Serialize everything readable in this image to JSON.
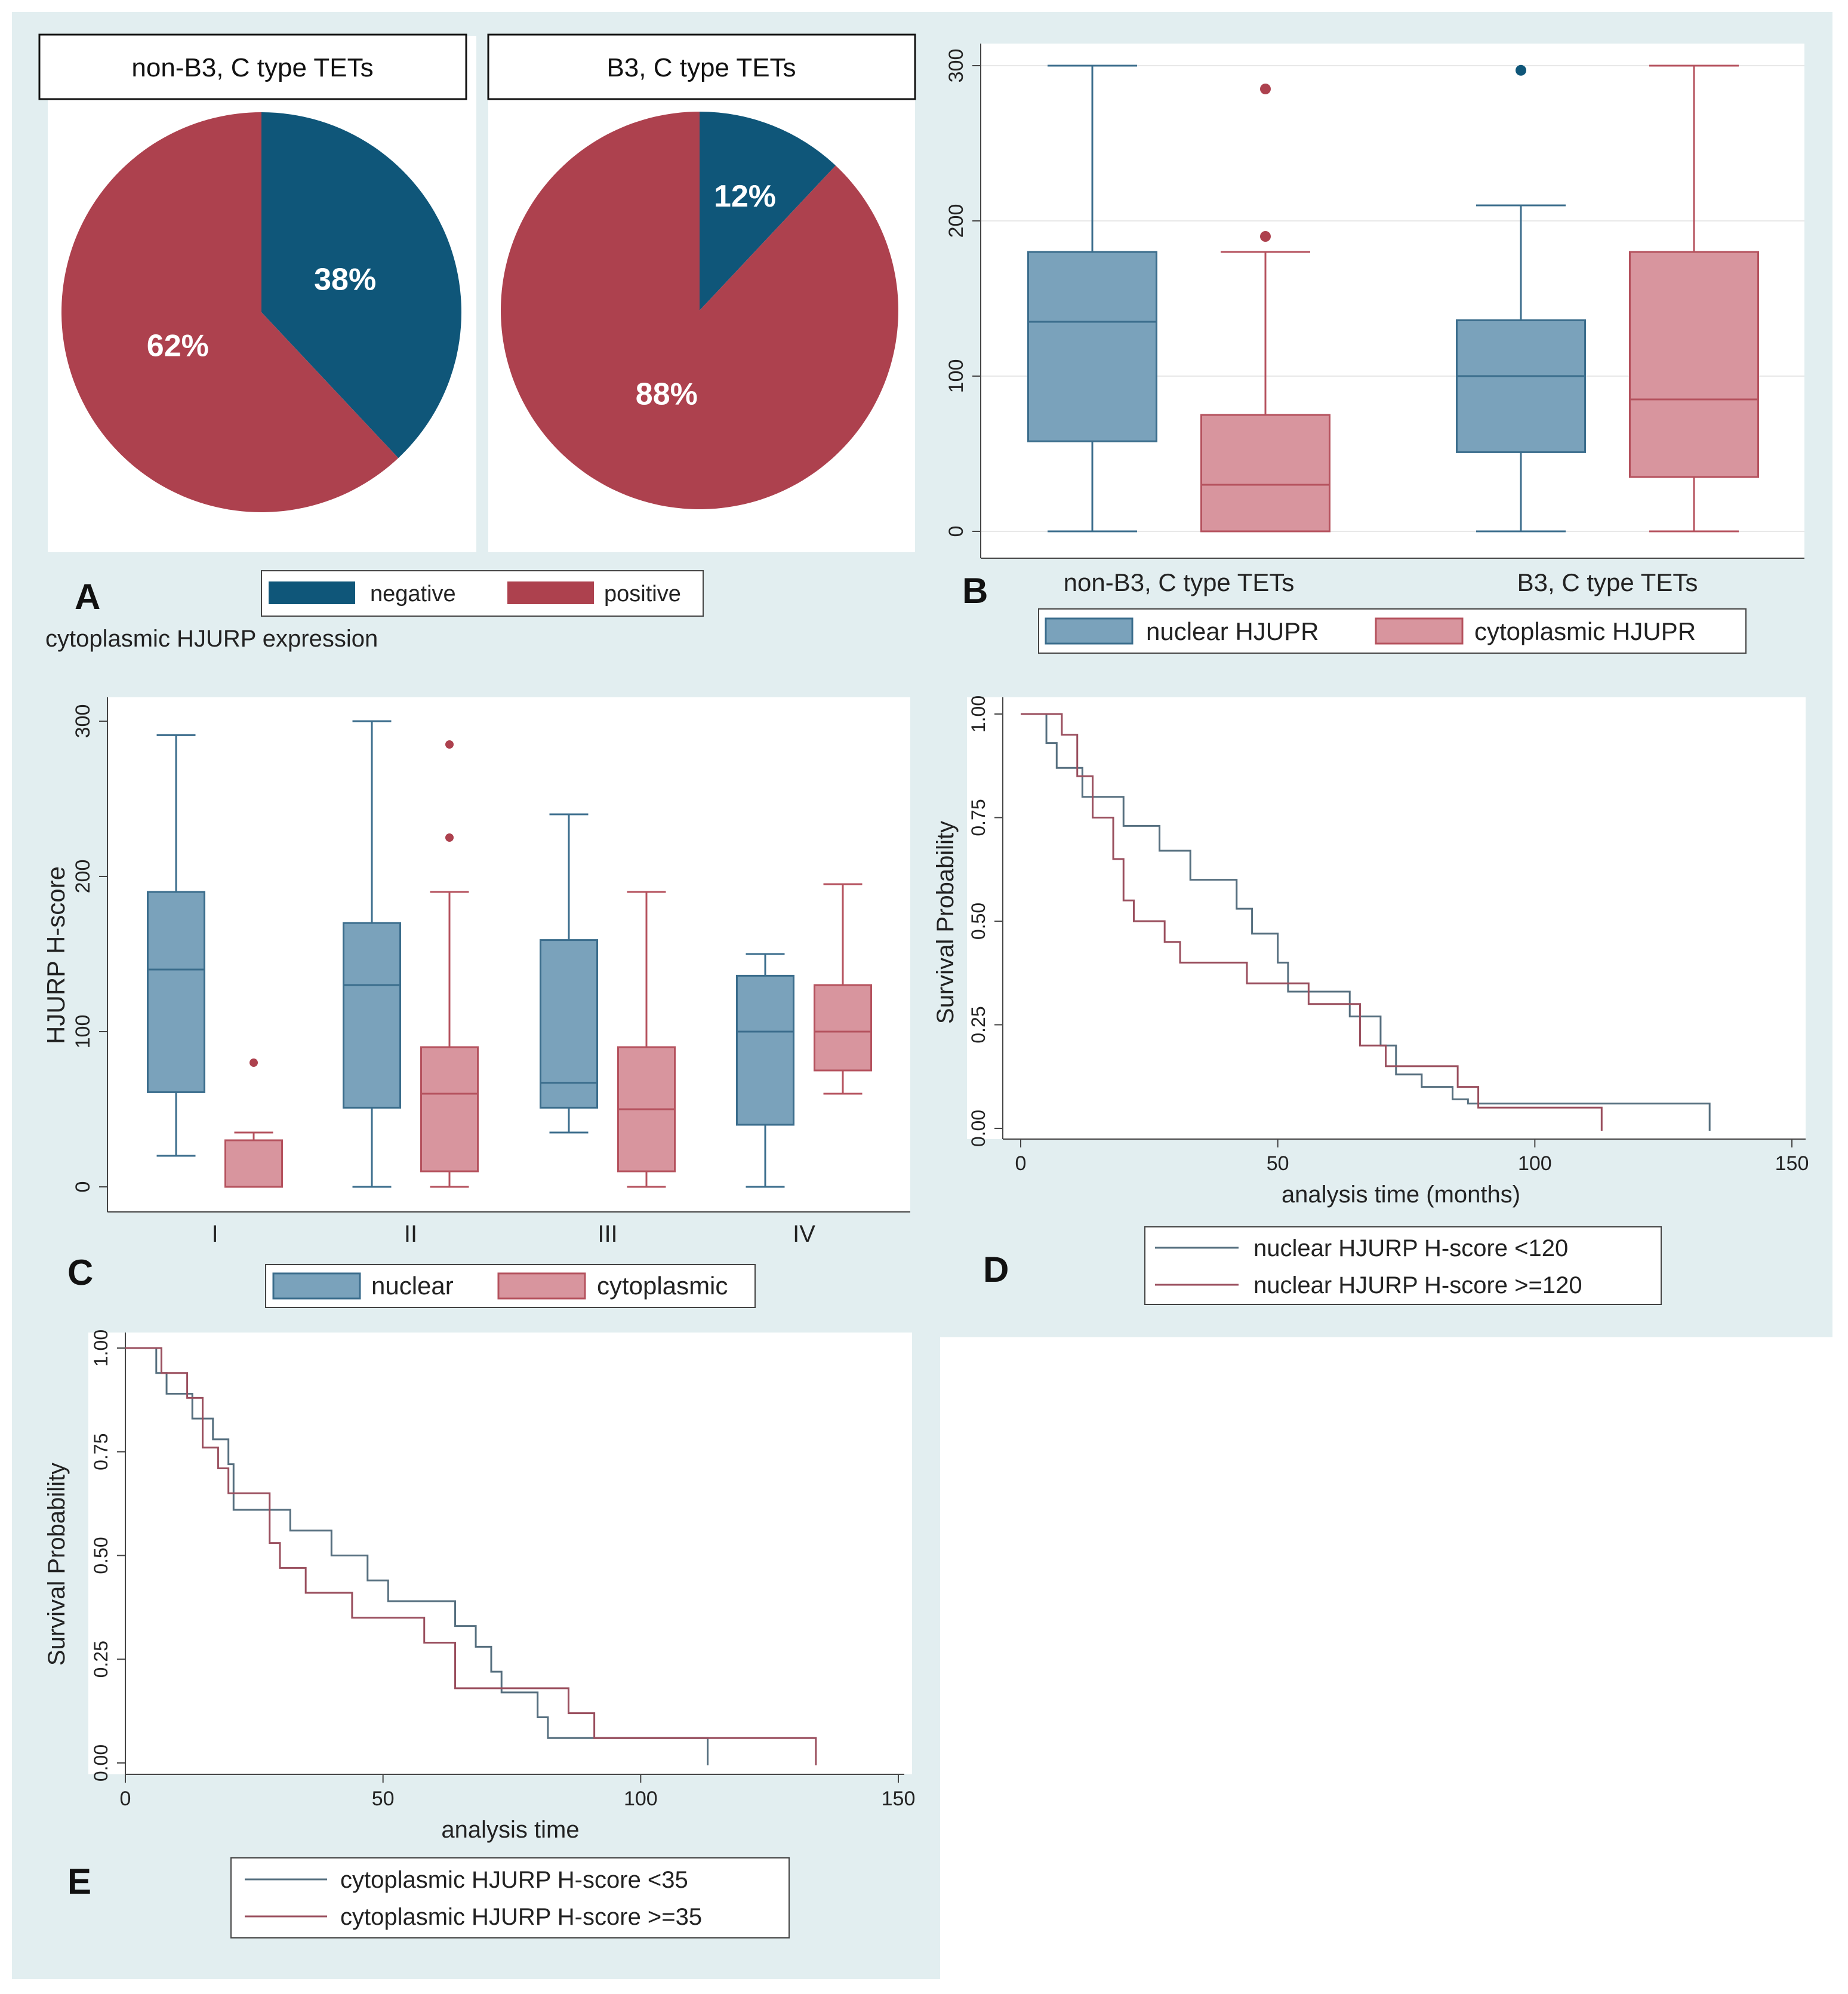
{
  "colors": {
    "panel_bg": "#e2eef0",
    "plot_bg": "#ffffff",
    "blue_dark": "#0f5679",
    "red_dark": "#ad414e",
    "blue_box": "#7aa2bb",
    "blue_line": "#3b6d8c",
    "red_box": "#d8959e",
    "red_line": "#b5525e",
    "km_blue": "#566f7f",
    "km_red": "#9a4f5e",
    "axis": "#444444",
    "grid": "#e8e8e8"
  },
  "panels": {
    "A": {
      "letter": "A",
      "legend_title": "cytoplasmic HJURP expression",
      "legend": [
        "negative",
        "positive"
      ]
    },
    "B": {
      "letter": "B",
      "legend": [
        "nuclear HJUPR",
        "cytoplasmic HJUPR"
      ]
    },
    "C": {
      "letter": "C",
      "legend": [
        "nuclear",
        "cytoplasmic"
      ]
    },
    "D": {
      "letter": "D",
      "legend": [
        "nuclear HJURP H-score <120",
        "nuclear HJURP H-score >=120"
      ]
    },
    "E": {
      "letter": "E",
      "legend": [
        "cytoplasmic HJURP H-score <35",
        "cytoplasmic HJURP H-score >=35"
      ]
    }
  },
  "chart_data": [
    {
      "id": "A1",
      "type": "pie",
      "title": "non-B3, C type TETs",
      "slices": [
        {
          "label": "negative",
          "value": 38,
          "text": "38%"
        },
        {
          "label": "positive",
          "value": 62,
          "text": "62%"
        }
      ]
    },
    {
      "id": "A2",
      "type": "pie",
      "title": "B3, C type TETs",
      "slices": [
        {
          "label": "negative",
          "value": 12,
          "text": "12%"
        },
        {
          "label": "positive",
          "value": 88,
          "text": "88%"
        }
      ]
    },
    {
      "id": "B",
      "type": "box",
      "title": "",
      "xlabel": "",
      "ylabel": "",
      "ylim": [
        0,
        300
      ],
      "yticks": [
        "0",
        "100",
        "200",
        "300"
      ],
      "categories": [
        "non-B3, C type TETs",
        "B3, C type TETs"
      ],
      "series": [
        {
          "name": "nuclear HJUPR",
          "boxes": [
            {
              "min": 0,
              "q1": 58,
              "median": 135,
              "q3": 180,
              "max": 300,
              "outliers": []
            },
            {
              "min": 0,
              "q1": 51,
              "median": 100,
              "q3": 136,
              "max": 210,
              "outliers": [
                297
              ]
            }
          ]
        },
        {
          "name": "cytoplasmic HJUPR",
          "boxes": [
            {
              "min": 0,
              "q1": 0,
              "median": 30,
              "q3": 75,
              "max": 180,
              "outliers": [
                190,
                285
              ]
            },
            {
              "min": 0,
              "q1": 35,
              "median": 85,
              "q3": 180,
              "max": 300,
              "outliers": []
            }
          ]
        }
      ]
    },
    {
      "id": "C",
      "type": "box",
      "title": "",
      "xlabel": "",
      "ylabel": "HJURP H-score",
      "ylim": [
        0,
        300
      ],
      "yticks": [
        "0",
        "100",
        "200",
        "300"
      ],
      "categories": [
        "I",
        "II",
        "III",
        "IV"
      ],
      "series": [
        {
          "name": "nuclear",
          "boxes": [
            {
              "min": 20,
              "q1": 61,
              "median": 140,
              "q3": 190,
              "max": 291,
              "outliers": []
            },
            {
              "min": 0,
              "q1": 51,
              "median": 130,
              "q3": 170,
              "max": 300,
              "outliers": []
            },
            {
              "min": 35,
              "q1": 51,
              "median": 67,
              "q3": 159,
              "max": 240,
              "outliers": []
            },
            {
              "min": 0,
              "q1": 40,
              "median": 100,
              "q3": 136,
              "max": 150,
              "outliers": []
            }
          ]
        },
        {
          "name": "cytoplasmic",
          "boxes": [
            {
              "min": 0,
              "q1": 0,
              "median": 30,
              "q3": 30,
              "max": 35,
              "outliers": [
                80
              ]
            },
            {
              "min": 0,
              "q1": 10,
              "median": 60,
              "q3": 90,
              "max": 190,
              "outliers": [
                225,
                285
              ]
            },
            {
              "min": 0,
              "q1": 10,
              "median": 50,
              "q3": 90,
              "max": 190,
              "outliers": []
            },
            {
              "min": 60,
              "q1": 75,
              "median": 100,
              "q3": 130,
              "max": 195,
              "outliers": []
            }
          ]
        }
      ]
    },
    {
      "id": "D",
      "type": "line",
      "subtype": "step",
      "xlabel": "analysis time (months)",
      "ylabel": "Survival Probability",
      "xlim": [
        0,
        150
      ],
      "ylim": [
        0,
        1
      ],
      "xticks": [
        "0",
        "50",
        "100",
        "150"
      ],
      "yticks": [
        "0.00",
        "0.25",
        "0.50",
        "0.75",
        "1.00"
      ],
      "series": [
        {
          "name": "nuclear HJURP H-score <120",
          "x": [
            0,
            5,
            7,
            12,
            20,
            27,
            33,
            42,
            45,
            50,
            52,
            64,
            70,
            73,
            78,
            84,
            87,
            134
          ],
          "y": [
            1.0,
            0.93,
            0.87,
            0.8,
            0.73,
            0.67,
            0.6,
            0.53,
            0.47,
            0.4,
            0.33,
            0.27,
            0.2,
            0.13,
            0.1,
            0.07,
            0.06,
            0.06
          ]
        },
        {
          "name": "nuclear HJURP H-score >=120",
          "x": [
            0,
            8,
            11,
            14,
            18,
            20,
            22,
            28,
            31,
            33,
            44,
            50,
            56,
            66,
            71,
            81,
            85,
            89,
            113
          ],
          "y": [
            1.0,
            0.95,
            0.85,
            0.75,
            0.65,
            0.55,
            0.5,
            0.45,
            0.4,
            0.4,
            0.35,
            0.35,
            0.3,
            0.2,
            0.15,
            0.15,
            0.1,
            0.05,
            0.05
          ]
        }
      ]
    },
    {
      "id": "E",
      "type": "line",
      "subtype": "step",
      "xlabel": "analysis time",
      "ylabel": "Survival Probability",
      "xlim": [
        0,
        150
      ],
      "ylim": [
        0,
        1
      ],
      "xticks": [
        "0",
        "50",
        "100",
        "150"
      ],
      "yticks": [
        "0.00",
        "0.25",
        "0.50",
        "0.75",
        "1.00"
      ],
      "series": [
        {
          "name": "cytoplasmic HJURP H-score <35",
          "x": [
            0,
            6,
            8,
            13,
            17,
            20,
            21,
            28,
            32,
            40,
            47,
            51,
            56,
            64,
            68,
            71,
            73,
            80,
            82,
            113
          ],
          "y": [
            1.0,
            0.94,
            0.89,
            0.83,
            0.78,
            0.72,
            0.61,
            0.61,
            0.56,
            0.5,
            0.44,
            0.39,
            0.39,
            0.33,
            0.28,
            0.22,
            0.17,
            0.11,
            0.06,
            0.06
          ]
        },
        {
          "name": "cytoplasmic HJURP H-score >=35",
          "x": [
            0,
            7,
            12,
            15,
            18,
            20,
            28,
            30,
            35,
            44,
            50,
            58,
            64,
            72,
            77,
            86,
            88,
            91,
            134
          ],
          "y": [
            1.0,
            0.94,
            0.88,
            0.76,
            0.71,
            0.65,
            0.53,
            0.47,
            0.41,
            0.35,
            0.35,
            0.29,
            0.18,
            0.18,
            0.18,
            0.12,
            0.12,
            0.06,
            0.06
          ]
        }
      ]
    }
  ]
}
